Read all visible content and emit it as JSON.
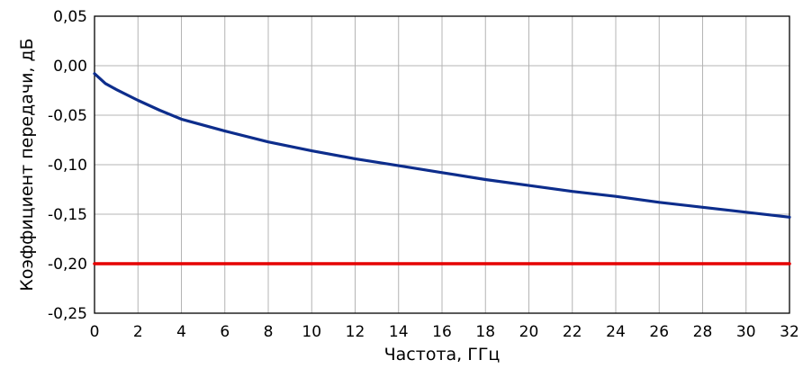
{
  "chart_data": {
    "type": "line",
    "xlabel": "Частота, ГГц",
    "ylabel": "Коэффициент передачи, дБ",
    "xlim": [
      0,
      32
    ],
    "ylim": [
      -0.25,
      0.05
    ],
    "x_ticks": [
      0,
      2,
      4,
      6,
      8,
      10,
      12,
      14,
      16,
      18,
      20,
      22,
      24,
      26,
      28,
      30,
      32
    ],
    "x_tick_labels": [
      "0",
      "2",
      "4",
      "6",
      "8",
      "10",
      "12",
      "14",
      "16",
      "18",
      "20",
      "22",
      "24",
      "26",
      "28",
      "30",
      "32"
    ],
    "y_ticks": [
      0.05,
      0.0,
      -0.05,
      -0.1,
      -0.15,
      -0.2,
      -0.25
    ],
    "y_tick_labels": [
      "0,05",
      "0,00",
      "-0,05",
      "-0,10",
      "-0,15",
      "-0,20",
      "-0,25"
    ],
    "grid": true,
    "series": [
      {
        "color": "#0d2d8c",
        "x": [
          0,
          0.5,
          1,
          2,
          3,
          4,
          6,
          8,
          10,
          12,
          14,
          16,
          18,
          20,
          22,
          24,
          26,
          28,
          30,
          32
        ],
        "y": [
          -0.008,
          -0.018,
          -0.024,
          -0.035,
          -0.045,
          -0.054,
          -0.066,
          -0.077,
          -0.086,
          -0.094,
          -0.101,
          -0.108,
          -0.115,
          -0.121,
          -0.127,
          -0.132,
          -0.138,
          -0.143,
          -0.148,
          -0.153
        ]
      },
      {
        "color": "#e50000",
        "x": [
          0,
          32
        ],
        "y": [
          -0.2,
          -0.2
        ]
      }
    ]
  }
}
